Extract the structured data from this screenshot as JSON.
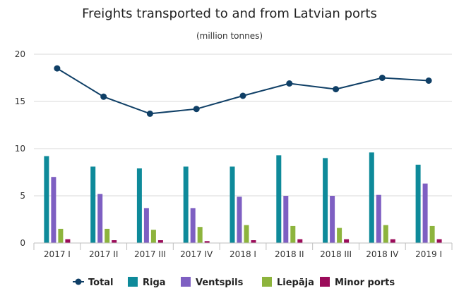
{
  "chart_data": {
    "type": "bar",
    "title": "Freights transported to and from Latvian ports",
    "subtitle": "(million tonnes)",
    "categories": [
      "2017 I",
      "2017 II",
      "2017 III",
      "2017 IV",
      "2018 I",
      "2018 II",
      "2018 III",
      "2018 IV",
      "2019 I"
    ],
    "ylim": [
      0,
      20
    ],
    "yticks": [
      0,
      5,
      10,
      15,
      20
    ],
    "grid": true,
    "legend_position": "bottom",
    "series": [
      {
        "name": "Riga",
        "kind": "bar",
        "color": "#0e8a9a",
        "values": [
          9.2,
          8.1,
          7.9,
          8.1,
          8.1,
          9.3,
          9.0,
          9.6,
          8.3
        ]
      },
      {
        "name": "Ventspils",
        "kind": "bar",
        "color": "#7e5fc2",
        "values": [
          7.0,
          5.2,
          3.7,
          3.7,
          4.9,
          5.0,
          5.0,
          5.1,
          6.3
        ]
      },
      {
        "name": "Liepāja",
        "kind": "bar",
        "color": "#8db43d",
        "values": [
          1.5,
          1.5,
          1.4,
          1.7,
          1.9,
          1.8,
          1.6,
          1.9,
          1.8
        ]
      },
      {
        "name": "Minor ports",
        "kind": "bar",
        "color": "#9b0c5a",
        "values": [
          0.4,
          0.3,
          0.3,
          0.2,
          0.3,
          0.4,
          0.4,
          0.4,
          0.4
        ]
      },
      {
        "name": "Total",
        "kind": "line",
        "color": "#0f3f66",
        "values": [
          18.5,
          15.5,
          13.7,
          14.2,
          15.6,
          16.9,
          16.3,
          17.5,
          17.2
        ]
      }
    ],
    "legend_order": [
      "Total",
      "Riga",
      "Ventspils",
      "Liepāja",
      "Minor ports"
    ]
  }
}
